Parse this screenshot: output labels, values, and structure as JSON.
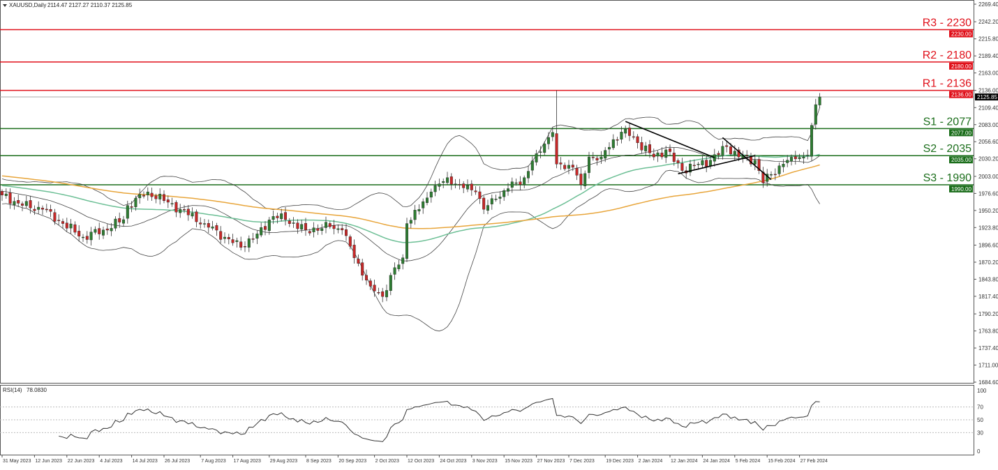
{
  "header": {
    "symbol": "XAUUSD,Daily",
    "ohlc": "2114.47 2127.27 2110.37 2125.85"
  },
  "rsi_label": {
    "name": "RSI(14)",
    "value": "78.0830"
  },
  "colors": {
    "up": "#2e7d32",
    "down": "#c62828",
    "resistance": "#e0101a",
    "support": "#1b6e1b",
    "ma_fast": "#6cbf95",
    "ma_slow": "#e8a53a",
    "band": "#444444"
  },
  "chart_data": {
    "type": "candlestick",
    "title": "XAUUSD,Daily",
    "ylim": [
      1684.6,
      2269.4
    ],
    "y_ticks": [
      "2269.40",
      "2242.20",
      "2215.80",
      "2189.40",
      "2163.00",
      "2136.00",
      "2109.40",
      "2083.00",
      "2056.60",
      "2030.20",
      "2003.00",
      "1976.60",
      "1950.20",
      "1923.80",
      "1896.60",
      "1870.20",
      "1843.80",
      "1817.40",
      "1790.20",
      "1763.80",
      "1737.40",
      "1711.00",
      "1684.60"
    ],
    "candle_count": 203,
    "close_anchors": [
      [
        0,
        1974
      ],
      [
        5,
        1958
      ],
      [
        10,
        1952
      ],
      [
        15,
        1930
      ],
      [
        20,
        1909
      ],
      [
        25,
        1920
      ],
      [
        30,
        1936
      ],
      [
        31,
        1958
      ],
      [
        36,
        1979
      ],
      [
        41,
        1963
      ],
      [
        44,
        1952
      ],
      [
        50,
        1930
      ],
      [
        55,
        1909
      ],
      [
        59,
        1893
      ],
      [
        63,
        1914
      ],
      [
        67,
        1941
      ],
      [
        70,
        1936
      ],
      [
        75,
        1920
      ],
      [
        81,
        1925
      ],
      [
        84,
        1920
      ],
      [
        87,
        1877
      ],
      [
        91,
        1833
      ],
      [
        94,
        1817
      ],
      [
        96,
        1850
      ],
      [
        99,
        1877
      ],
      [
        100,
        1930
      ],
      [
        103,
        1952
      ],
      [
        106,
        1979
      ],
      [
        110,
        2001
      ],
      [
        113,
        1990
      ],
      [
        117,
        1979
      ],
      [
        119,
        1952
      ],
      [
        122,
        1968
      ],
      [
        125,
        1984
      ],
      [
        129,
        2001
      ],
      [
        132,
        2038
      ],
      [
        136,
        2071
      ],
      [
        137,
        2022
      ],
      [
        141,
        2017
      ],
      [
        143,
        1990
      ],
      [
        145,
        2033
      ],
      [
        148,
        2033
      ],
      [
        151,
        2060
      ],
      [
        154,
        2076
      ],
      [
        157,
        2055
      ],
      [
        161,
        2033
      ],
      [
        164,
        2044
      ],
      [
        168,
        2012
      ],
      [
        172,
        2022
      ],
      [
        175,
        2028
      ],
      [
        179,
        2049
      ],
      [
        182,
        2033
      ],
      [
        186,
        2028
      ],
      [
        188,
        1993
      ],
      [
        190,
        2006
      ],
      [
        193,
        2022
      ],
      [
        196,
        2030
      ],
      [
        199,
        2036
      ],
      [
        200,
        2082
      ],
      [
        201,
        2114
      ],
      [
        202,
        2125.85
      ]
    ],
    "spike_highs": [
      [
        137,
        2136
      ]
    ],
    "last_price": "2125.85",
    "levels": [
      {
        "label": "R3 - 2230",
        "price": 2230,
        "tag": "2230.00",
        "kind": "resistance"
      },
      {
        "label": "R2 - 2180",
        "price": 2180,
        "tag": "2180.00",
        "kind": "resistance"
      },
      {
        "label": "R1 - 2136",
        "price": 2136,
        "tag": "2136.00",
        "kind": "resistance"
      },
      {
        "label": "S1 - 2077",
        "price": 2077,
        "tag": "2077.00",
        "kind": "support"
      },
      {
        "label": "S2 - 2035",
        "price": 2035,
        "tag": "2035.00",
        "kind": "support"
      },
      {
        "label": "S3 - 1990",
        "price": 1990,
        "tag": "1990.00",
        "kind": "support"
      }
    ],
    "trendlines": [
      [
        [
          154,
          2088
        ],
        [
          176,
          2032
        ]
      ],
      [
        [
          167,
          2007
        ],
        [
          186,
          2035
        ]
      ],
      [
        [
          178,
          2063
        ],
        [
          190,
          1998
        ]
      ]
    ],
    "rsi": {
      "period": 14,
      "ticks": [
        "100",
        "70",
        "50",
        "30",
        "0"
      ],
      "levels": [
        70,
        50,
        30
      ]
    },
    "x_labels": [
      [
        0,
        "31 May 2023"
      ],
      [
        8,
        "12 Jun 2023"
      ],
      [
        16,
        "22 Jun 2023"
      ],
      [
        24,
        "4 Jul 2023"
      ],
      [
        32,
        "14 Jul 2023"
      ],
      [
        40,
        "26 Jul 2023"
      ],
      [
        49,
        "7 Aug 2023"
      ],
      [
        57,
        "17 Aug 2023"
      ],
      [
        66,
        "29 Aug 2023"
      ],
      [
        75,
        "8 Sep 2023"
      ],
      [
        83,
        "20 Sep 2023"
      ],
      [
        92,
        "2 Oct 2023"
      ],
      [
        100,
        "12 Oct 2023"
      ],
      [
        108,
        "24 Oct 2023"
      ],
      [
        116,
        "3 Nov 2023"
      ],
      [
        124,
        "15 Nov 2023"
      ],
      [
        132,
        "27 Nov 2023"
      ],
      [
        140,
        "7 Dec 2023"
      ],
      [
        149,
        "19 Dec 2023"
      ],
      [
        157,
        "2 Jan 2024"
      ],
      [
        165,
        "12 Jan 2024"
      ],
      [
        173,
        "24 Jan 2024"
      ],
      [
        181,
        "5 Feb 2024"
      ],
      [
        189,
        "15 Feb 2024"
      ],
      [
        197,
        "27 Feb 2024"
      ]
    ]
  }
}
